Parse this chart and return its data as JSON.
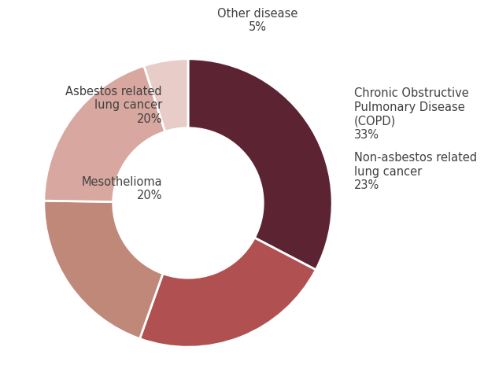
{
  "labels": [
    "Chronic Obstructive\nPulmonary Disease\n(COPD)\n33%",
    "Non-asbestos related\nlung cancer\n23%",
    "Mesothelioma\n20%",
    "Asbestos related\nlung cancer\n20%",
    "Other disease\n5%"
  ],
  "values": [
    33,
    23,
    20,
    20,
    5
  ],
  "colors": [
    "#5c2333",
    "#b05050",
    "#c08878",
    "#d8a8a0",
    "#e8ccc8"
  ],
  "background_color": "#ffffff",
  "wedge_edge_color": "#ffffff",
  "donut_width": 0.48,
  "font_size": 10.5,
  "text_color": "#404040"
}
